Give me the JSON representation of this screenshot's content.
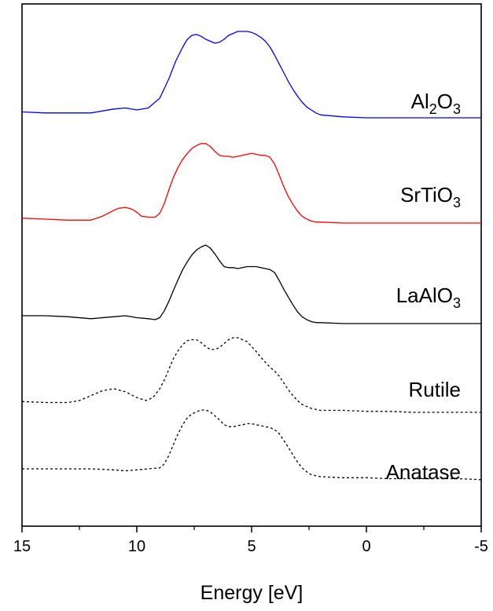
{
  "chart_data": {
    "type": "line",
    "xlabel": "Energy [eV]",
    "xlim": [
      15,
      -5
    ],
    "x_ticks": [
      "15",
      "10",
      "5",
      "0",
      "-5"
    ],
    "x_tick_values": [
      15,
      10,
      5,
      0,
      -5
    ],
    "y_ticks_shown": false,
    "grid": false,
    "series": [
      {
        "name": "Al2O3",
        "label_main": "Al",
        "label_parts": [
          [
            "Al",
            ""
          ],
          [
            "2",
            "sub"
          ],
          [
            "O",
            ""
          ],
          [
            "3",
            "sub"
          ]
        ],
        "color": "#0000ff",
        "dash": "solid",
        "offset": 4,
        "x": [
          15,
          14,
          13,
          12,
          11.5,
          11,
          10.5,
          10,
          9.5,
          9,
          8.6,
          8.3,
          8,
          7.8,
          7.6,
          7.4,
          7.2,
          7,
          6.8,
          6.6,
          6.4,
          6.2,
          6,
          5.8,
          5.6,
          5.4,
          5.2,
          5,
          4.8,
          4.6,
          4.4,
          4.2,
          4,
          3.8,
          3.6,
          3.4,
          3.2,
          3,
          2.8,
          2.6,
          2.4,
          2.2,
          2,
          1,
          0,
          -1,
          -2,
          -3,
          -4,
          -5
        ],
        "y": [
          0.06,
          0.05,
          0.05,
          0.05,
          0.07,
          0.09,
          0.1,
          0.08,
          0.1,
          0.2,
          0.4,
          0.58,
          0.72,
          0.8,
          0.84,
          0.85,
          0.83,
          0.8,
          0.78,
          0.76,
          0.77,
          0.8,
          0.84,
          0.86,
          0.88,
          0.88,
          0.88,
          0.87,
          0.85,
          0.82,
          0.78,
          0.72,
          0.64,
          0.55,
          0.46,
          0.37,
          0.29,
          0.22,
          0.16,
          0.11,
          0.08,
          0.05,
          0.03,
          0.01,
          0,
          0,
          0,
          0,
          0,
          0
        ]
      },
      {
        "name": "SrTiO3",
        "label_parts": [
          [
            "SrTiO",
            ""
          ],
          [
            "3",
            "sub"
          ]
        ],
        "color": "#ff0000",
        "dash": "solid",
        "offset": 3,
        "x": [
          15,
          14,
          13,
          12,
          11.5,
          11,
          10.8,
          10.5,
          10.2,
          10,
          9.8,
          9.5,
          9.2,
          9,
          8.8,
          8.6,
          8.4,
          8.2,
          8,
          7.8,
          7.6,
          7.4,
          7.2,
          7,
          6.8,
          6.6,
          6.4,
          6.2,
          6,
          5.8,
          5.6,
          5.4,
          5.2,
          5,
          4.8,
          4.6,
          4.4,
          4.2,
          4,
          3.8,
          3.6,
          3.4,
          3.2,
          3,
          2.8,
          2.6,
          2.4,
          2.2,
          2,
          1,
          0,
          -1,
          -2,
          -3,
          -4,
          -5
        ],
        "y": [
          0.05,
          0.04,
          0.03,
          0.03,
          0.07,
          0.13,
          0.15,
          0.16,
          0.14,
          0.11,
          0.07,
          0.06,
          0.06,
          0.1,
          0.2,
          0.34,
          0.47,
          0.57,
          0.65,
          0.71,
          0.76,
          0.79,
          0.81,
          0.81,
          0.78,
          0.73,
          0.69,
          0.68,
          0.68,
          0.67,
          0.68,
          0.69,
          0.7,
          0.71,
          0.7,
          0.69,
          0.69,
          0.67,
          0.6,
          0.49,
          0.37,
          0.27,
          0.19,
          0.12,
          0.07,
          0.04,
          0.02,
          0.01,
          0.01,
          0,
          0,
          0,
          0,
          0,
          0,
          0
        ]
      },
      {
        "name": "LaAlO3",
        "label_parts": [
          [
            "LaAlO",
            ""
          ],
          [
            "3",
            "sub"
          ]
        ],
        "color": "#000000",
        "dash": "solid",
        "offset": 2,
        "x": [
          15,
          14,
          13,
          12,
          11,
          10.5,
          10,
          9.5,
          9.2,
          9,
          8.8,
          8.6,
          8.4,
          8.2,
          8,
          7.8,
          7.6,
          7.4,
          7.2,
          7,
          6.8,
          6.6,
          6.4,
          6.2,
          6,
          5.8,
          5.6,
          5.4,
          5.2,
          5,
          4.8,
          4.6,
          4.4,
          4.2,
          4,
          3.8,
          3.6,
          3.4,
          3.2,
          3,
          2.8,
          2.6,
          2.4,
          2.2,
          2,
          1,
          0,
          -1,
          -2,
          -3,
          -4,
          -5
        ],
        "y": [
          0.08,
          0.08,
          0.07,
          0.05,
          0.07,
          0.08,
          0.06,
          0.05,
          0.04,
          0.06,
          0.13,
          0.23,
          0.34,
          0.45,
          0.55,
          0.63,
          0.7,
          0.75,
          0.78,
          0.8,
          0.77,
          0.71,
          0.64,
          0.58,
          0.57,
          0.57,
          0.56,
          0.57,
          0.58,
          0.58,
          0.58,
          0.57,
          0.56,
          0.55,
          0.52,
          0.44,
          0.35,
          0.27,
          0.19,
          0.12,
          0.07,
          0.04,
          0.02,
          0.01,
          0.01,
          0,
          0,
          0,
          0,
          0,
          0,
          0
        ]
      },
      {
        "name": "Rutile",
        "label_parts": [
          [
            "Rutile",
            ""
          ]
        ],
        "color": "#000000",
        "dash": "dashed",
        "offset": 1,
        "x": [
          15,
          14,
          13,
          12.5,
          12,
          11.5,
          11,
          10.5,
          10,
          9.6,
          9.3,
          9,
          8.8,
          8.6,
          8.4,
          8.2,
          8,
          7.8,
          7.6,
          7.4,
          7.2,
          7,
          6.8,
          6.6,
          6.4,
          6.2,
          6,
          5.8,
          5.6,
          5.4,
          5.2,
          5,
          4.8,
          4.6,
          4.4,
          4.2,
          4,
          3.8,
          3.6,
          3.4,
          3.2,
          3,
          2.8,
          2.6,
          2.4,
          2.2,
          2,
          1,
          0,
          -1,
          -2,
          -3,
          -4,
          -5
        ],
        "y": [
          0.11,
          0.1,
          0.1,
          0.12,
          0.17,
          0.22,
          0.24,
          0.21,
          0.15,
          0.12,
          0.15,
          0.24,
          0.33,
          0.44,
          0.55,
          0.63,
          0.69,
          0.73,
          0.74,
          0.74,
          0.71,
          0.67,
          0.64,
          0.64,
          0.66,
          0.7,
          0.74,
          0.76,
          0.76,
          0.74,
          0.72,
          0.67,
          0.62,
          0.56,
          0.51,
          0.46,
          0.42,
          0.37,
          0.3,
          0.23,
          0.17,
          0.12,
          0.08,
          0.06,
          0.04,
          0.03,
          0.02,
          0.02,
          0.01,
          0.01,
          0,
          0,
          0,
          0
        ]
      },
      {
        "name": "Anatase",
        "label_parts": [
          [
            "Anatase",
            ""
          ]
        ],
        "color": "#000000",
        "dash": "dashed",
        "offset": 0,
        "x": [
          15,
          14,
          13,
          12,
          11,
          10.5,
          10,
          9.5,
          9,
          8.8,
          8.6,
          8.4,
          8.2,
          8,
          7.8,
          7.6,
          7.4,
          7.2,
          7,
          6.8,
          6.6,
          6.4,
          6.2,
          6,
          5.8,
          5.6,
          5.4,
          5.2,
          5,
          4.8,
          4.6,
          4.4,
          4.2,
          4,
          3.8,
          3.6,
          3.4,
          3.2,
          3,
          2.8,
          2.6,
          2.4,
          2.2,
          2,
          1,
          0,
          -1,
          -2,
          -3,
          -4,
          -5
        ],
        "y": [
          0.12,
          0.12,
          0.12,
          0.12,
          0.11,
          0.1,
          0.11,
          0.12,
          0.13,
          0.17,
          0.26,
          0.37,
          0.48,
          0.57,
          0.64,
          0.68,
          0.7,
          0.72,
          0.72,
          0.7,
          0.66,
          0.62,
          0.57,
          0.55,
          0.55,
          0.56,
          0.57,
          0.58,
          0.58,
          0.57,
          0.56,
          0.55,
          0.54,
          0.52,
          0.48,
          0.41,
          0.34,
          0.26,
          0.19,
          0.13,
          0.09,
          0.06,
          0.05,
          0.04,
          0.03,
          0.03,
          0.02,
          0.02,
          0.02,
          0.02,
          0.01
        ]
      }
    ]
  }
}
